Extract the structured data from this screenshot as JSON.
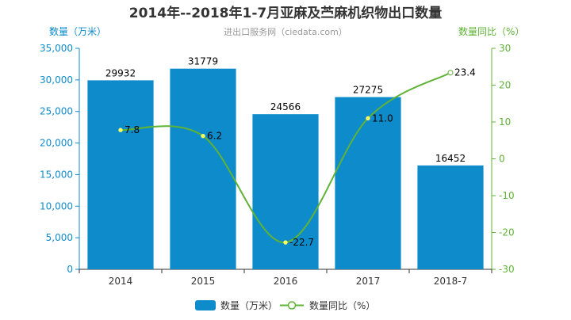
{
  "chart_data": {
    "type": "bar",
    "title": "2014年--2018年1-7月亚麻及苎麻机织物出口数量",
    "subtitle": "进出口服务网（ciedata.com）",
    "categories": [
      "2014",
      "2015",
      "2016",
      "2017",
      "2018-7"
    ],
    "y_left": {
      "label": "数量（万米）",
      "ylim": [
        0,
        35000
      ],
      "ticks": [
        "0",
        "5,000",
        "10,000",
        "15,000",
        "20,000",
        "25,000",
        "30,000",
        "35,000"
      ],
      "tick_values": [
        0,
        5000,
        10000,
        15000,
        20000,
        25000,
        30000,
        35000
      ]
    },
    "y_right": {
      "label": "数量同比（%）",
      "ylim": [
        -30,
        30
      ],
      "ticks": [
        "-30",
        "-20",
        "-10",
        "0",
        "10",
        "20",
        "30"
      ],
      "tick_values": [
        -30,
        -20,
        -10,
        0,
        10,
        20,
        30
      ]
    },
    "series": [
      {
        "name": "数量（万米）",
        "type": "bar",
        "axis": "left",
        "values": [
          29932,
          31779,
          24566,
          27275,
          16452
        ],
        "labels": [
          "29932",
          "31779",
          "24566",
          "27275",
          "16452"
        ],
        "color": "#0e8bcb"
      },
      {
        "name": "数量同比（%）",
        "type": "line",
        "axis": "right",
        "values": [
          7.8,
          6.2,
          -22.7,
          11.0,
          23.4
        ],
        "labels": [
          "7.8",
          "6.2",
          "-22.7",
          "11.0",
          "23.4"
        ],
        "color": "#5fb336"
      }
    ],
    "grid": false,
    "legend": "bottom-center",
    "colors": {
      "left_axis": "#0e8bcb",
      "right_axis": "#5fb336",
      "subtitle": "#999999"
    }
  }
}
